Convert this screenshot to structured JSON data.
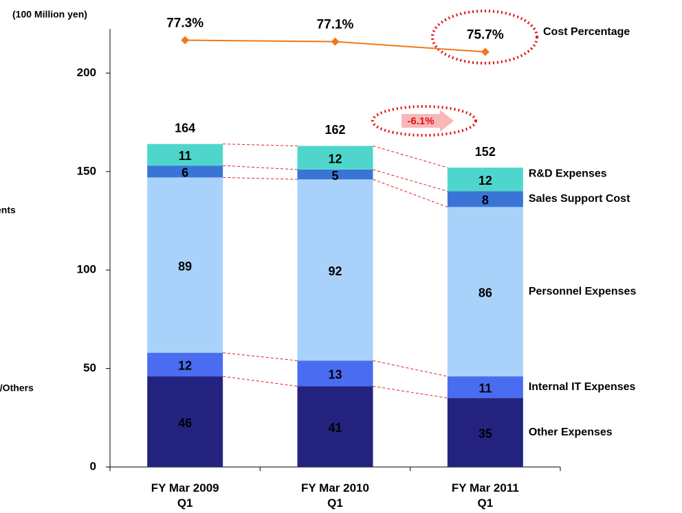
{
  "chart_data": {
    "type": "stacked_bar",
    "y_axis_label": "(100 Million yen)",
    "categories": [
      "FY Mar 2009 Q1",
      "FY Mar 2010 Q1",
      "FY Mar 2011 Q1"
    ],
    "series": [
      {
        "name": "Other Expenses",
        "color": "#23237f",
        "values": [
          46,
          41,
          35
        ]
      },
      {
        "name": "Internal IT Expenses",
        "color": "#4a6cf0",
        "values": [
          12,
          13,
          11
        ]
      },
      {
        "name": "Personnel Expenses",
        "color": "#a9d2fa",
        "values": [
          89,
          92,
          86
        ]
      },
      {
        "name": "Sales Support Cost",
        "color": "#3a74d6",
        "values": [
          6,
          5,
          8
        ]
      },
      {
        "name": "R&D Expenses",
        "color": "#4fd6cc",
        "values": [
          11,
          12,
          12
        ]
      }
    ],
    "totals": [
      164,
      162,
      152
    ],
    "line_series": {
      "type": "line",
      "name": "Cost Percentage",
      "color": "#f07818",
      "axis": "y2",
      "values": [
        77.3,
        77.1,
        75.7
      ],
      "value_labels": [
        "77.3%",
        "77.1%",
        "75.7%"
      ]
    },
    "change_annotation": "-6.1%",
    "cropped_labels": [
      "ents",
      "s/Others"
    ],
    "ylim": [
      0,
      220
    ],
    "yticks": [
      0,
      50,
      100,
      150,
      200
    ],
    "y2lim": [
      18.7,
      78.2
    ]
  }
}
